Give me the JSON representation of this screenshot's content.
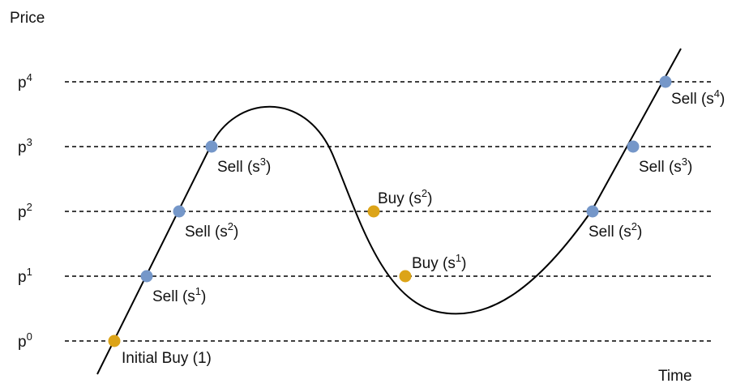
{
  "axes": {
    "y_title": "Price",
    "x_title": "Time"
  },
  "levels": [
    {
      "base": "p",
      "exp": "0"
    },
    {
      "base": "p",
      "exp": "1"
    },
    {
      "base": "p",
      "exp": "2"
    },
    {
      "base": "p",
      "exp": "3"
    },
    {
      "base": "p",
      "exp": "4"
    }
  ],
  "colors": {
    "sell": "#7597c9",
    "buy": "#dca418",
    "line": "#000000"
  },
  "points": [
    {
      "id": "initial-buy",
      "kind": "buy",
      "level": 0,
      "label": "Initial Buy (1)",
      "exp": ""
    },
    {
      "id": "sell-1a",
      "kind": "sell",
      "level": 1,
      "label": "Sell (s",
      "exp": "1"
    },
    {
      "id": "sell-2a",
      "kind": "sell",
      "level": 2,
      "label": "Sell (s",
      "exp": "2"
    },
    {
      "id": "sell-3a",
      "kind": "sell",
      "level": 3,
      "label": "Sell (s",
      "exp": "3"
    },
    {
      "id": "buy-2",
      "kind": "buy",
      "level": 2,
      "label": "Buy (s",
      "exp": "2"
    },
    {
      "id": "buy-1",
      "kind": "buy",
      "level": 1,
      "label": "Buy (s",
      "exp": "1"
    },
    {
      "id": "sell-2b",
      "kind": "sell",
      "level": 2,
      "label": "Sell (s",
      "exp": "2"
    },
    {
      "id": "sell-3b",
      "kind": "sell",
      "level": 3,
      "label": "Sell (s",
      "exp": "3"
    },
    {
      "id": "sell-4",
      "kind": "sell",
      "level": 4,
      "label": "Sell (s",
      "exp": "4"
    }
  ]
}
